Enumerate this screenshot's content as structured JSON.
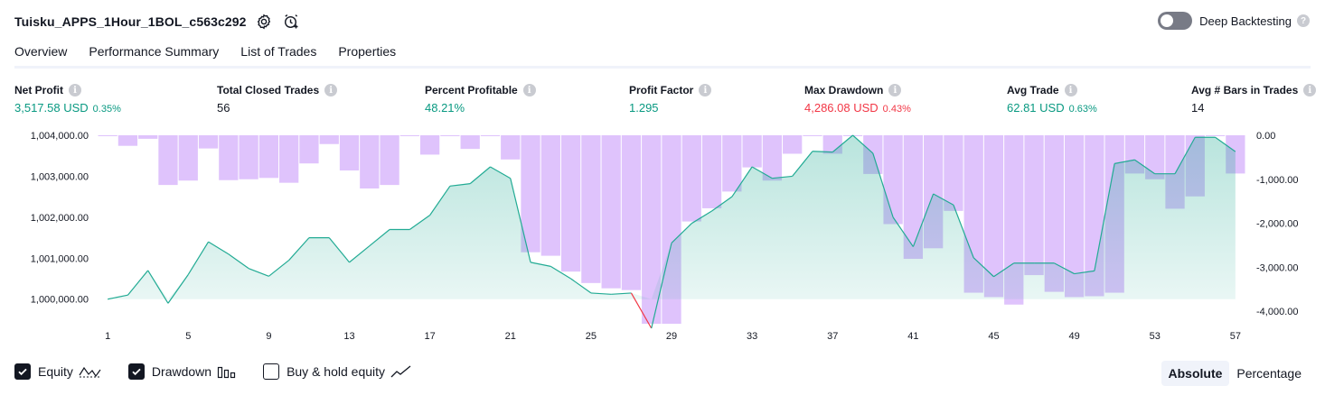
{
  "header": {
    "title": "Tuisku_APPS_1Hour_1BOL_c563c292",
    "deep_backtesting_label": "Deep Backtesting"
  },
  "tabs": [
    {
      "label": "Overview",
      "active": true
    },
    {
      "label": "Performance Summary",
      "active": false
    },
    {
      "label": "List of Trades",
      "active": false
    },
    {
      "label": "Properties",
      "active": false
    }
  ],
  "metrics": [
    {
      "label": "Net Profit",
      "value": "3,517.58 USD",
      "sub": "0.35%",
      "tone": "pos"
    },
    {
      "label": "Total Closed Trades",
      "value": "56",
      "sub": "",
      "tone": "plain"
    },
    {
      "label": "Percent Profitable",
      "value": "48.21%",
      "sub": "",
      "tone": "pos"
    },
    {
      "label": "Profit Factor",
      "value": "1.295",
      "sub": "",
      "tone": "pos"
    },
    {
      "label": "Max Drawdown",
      "value": "4,286.08 USD",
      "sub": "0.43%",
      "tone": "neg"
    },
    {
      "label": "Avg Trade",
      "value": "62.81 USD",
      "sub": "0.63%",
      "tone": "pos"
    },
    {
      "label": "Avg # Bars in Trades",
      "value": "14",
      "sub": "",
      "tone": "plain"
    }
  ],
  "legend": {
    "equity_label": "Equity",
    "drawdown_label": "Drawdown",
    "buyhold_label": "Buy & hold equity",
    "equity_checked": true,
    "drawdown_checked": true,
    "buyhold_checked": false
  },
  "mode": {
    "absolute_label": "Absolute",
    "percentage_label": "Percentage",
    "selected": "Absolute"
  },
  "chart_data": {
    "type": "area",
    "x_ticks": [
      1,
      5,
      9,
      13,
      17,
      21,
      25,
      29,
      33,
      37,
      41,
      45,
      49,
      53,
      57
    ],
    "y_left_ticks": [
      "1,000,000.00",
      "1,001,000.00",
      "1,002,000.00",
      "1,003,000.00",
      "1,004,000.00"
    ],
    "y_left_range": [
      999400,
      1004000
    ],
    "y_right_ticks": [
      "0.00",
      "-1,000.00",
      "-2,000.00",
      "-3,000.00",
      "-4,000.00"
    ],
    "y_right_range": [
      -4286.08,
      0
    ],
    "colors": {
      "equity_line": "#22ab94",
      "equity_fill": "#22ab94",
      "equity_below_start": "#f23645",
      "drawdown_bar": "#d9b8fb"
    },
    "series": [
      {
        "name": "Equity",
        "x": [
          1,
          2,
          3,
          4,
          5,
          6,
          7,
          8,
          9,
          10,
          11,
          12,
          13,
          14,
          15,
          16,
          17,
          18,
          19,
          20,
          21,
          22,
          23,
          24,
          25,
          26,
          27,
          28,
          29,
          30,
          31,
          32,
          33,
          34,
          35,
          36,
          37,
          38,
          39,
          40,
          41,
          42,
          43,
          44,
          45,
          46,
          47,
          48,
          49,
          50,
          51,
          52,
          53,
          54,
          55,
          56,
          57
        ],
        "values": [
          1000000,
          1000100,
          1000700,
          999900,
          1000600,
          1001400,
          1001100,
          1000750,
          1000560,
          1000950,
          1001500,
          1001500,
          1000900,
          1001300,
          1001700,
          1001700,
          1002050,
          1002760,
          1002820,
          1003230,
          1002950,
          1000900,
          1000800,
          1000500,
          1000150,
          1000120,
          1000150,
          999290,
          1001370,
          1001850,
          1002150,
          1002500,
          1003230,
          1002950,
          1003000,
          1003610,
          1003590,
          1004000,
          1003560,
          1002000,
          1001280,
          1002570,
          1002300,
          1001010,
          1000550,
          1000880,
          1000880,
          1000880,
          1000620,
          1000690,
          1003310,
          1003400,
          1003060,
          1003060,
          1003950,
          1003950,
          1003600
        ]
      },
      {
        "name": "Drawdown",
        "x": [
          1,
          2,
          3,
          4,
          5,
          6,
          7,
          8,
          9,
          10,
          11,
          12,
          13,
          14,
          15,
          16,
          17,
          18,
          19,
          20,
          21,
          22,
          23,
          24,
          25,
          26,
          27,
          28,
          29,
          30,
          31,
          32,
          33,
          34,
          35,
          36,
          37,
          38,
          39,
          40,
          41,
          42,
          43,
          44,
          45,
          46,
          47,
          48,
          49,
          50,
          51,
          52,
          53,
          54,
          55,
          56,
          57
        ],
        "values": [
          0,
          -240,
          -80,
          -1130,
          -1030,
          -300,
          -1020,
          -1000,
          -970,
          -1080,
          -640,
          -200,
          -800,
          -1210,
          -1130,
          0,
          -440,
          0,
          -310,
          0,
          -550,
          -2660,
          -2740,
          -3100,
          -3360,
          -3480,
          -3520,
          -4286.08,
          -4286.08,
          -1960,
          -1660,
          -1280,
          -730,
          -1030,
          -420,
          0,
          -420,
          0,
          -880,
          -2020,
          -2810,
          -2570,
          -1720,
          -3580,
          -3680,
          -3850,
          -3180,
          -3560,
          -3680,
          -3660,
          -3580,
          -870,
          -1000,
          -1670,
          -1390,
          0,
          -870
        ]
      }
    ]
  }
}
